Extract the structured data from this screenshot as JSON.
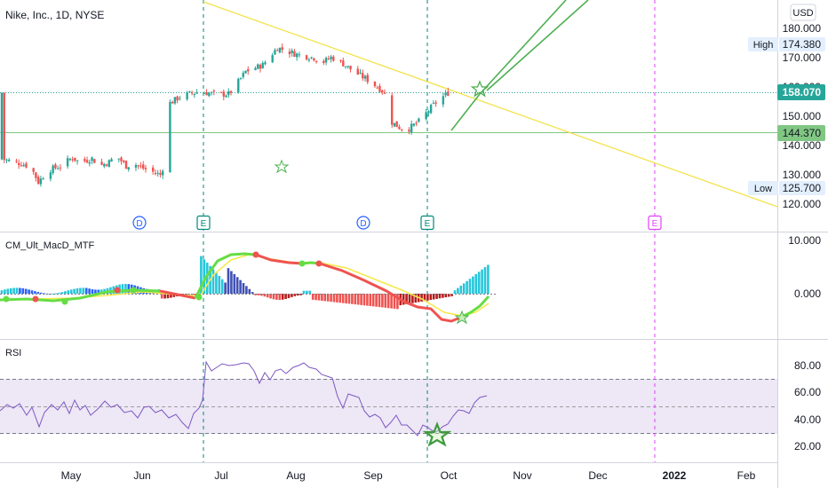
{
  "symbol_title": "Nike, Inc., 1D, NYSE",
  "currency": "USD",
  "price_axis": {
    "ticks": [
      "180.000",
      "170.000",
      "160.000",
      "150.000",
      "140.000",
      "130.000",
      "120.000"
    ],
    "values": [
      180,
      170,
      160,
      150,
      140,
      130,
      120
    ],
    "range": [
      113,
      187
    ]
  },
  "price_badges": {
    "high_label": "High",
    "high_value": "174.380",
    "last_value": "158.070",
    "level_value": "144.370",
    "low_label": "Low",
    "low_value": "125.700"
  },
  "event_markers": [
    {
      "label": "D",
      "kind": "dividend"
    },
    {
      "label": "E",
      "kind": "earnings"
    },
    {
      "label": "D",
      "kind": "dividend"
    },
    {
      "label": "E",
      "kind": "earnings"
    },
    {
      "label": "E",
      "kind": "earnings-upcoming"
    }
  ],
  "macd_panel": {
    "title": "CM_Ult_MacD_MTF",
    "ticks": [
      "10.000",
      "0.000"
    ],
    "values": [
      10,
      0
    ],
    "range": [
      -7.5,
      12
    ]
  },
  "rsi_panel": {
    "title": "RSI",
    "ticks": [
      "80.00",
      "60.00",
      "40.00",
      "20.00"
    ],
    "values": [
      80,
      60,
      40,
      20
    ],
    "range": [
      12,
      92
    ],
    "band": [
      30,
      70
    ],
    "midline": 50
  },
  "time_axis": {
    "labels": [
      "May",
      "Jun",
      "Jul",
      "Aug",
      "Sep",
      "Oct",
      "Nov",
      "Dec",
      "2022",
      "Feb"
    ]
  },
  "colors": {
    "up": "#26a69a",
    "down": "#ef5350",
    "trendline": "#f2e34c",
    "drawing": "#4caf50",
    "rsi_line": "#7e57c2",
    "rsi_band": "#ede7f6",
    "macd_up": "#4caf50",
    "macd_down": "#ef5350",
    "signal": "#f5e94a",
    "event_dividend": "#2962ff",
    "event_earnings": "#00897b",
    "event_upcoming": "#e040fb"
  },
  "chart_data": {
    "type": "candlestick",
    "title": "Nike, Inc., 1D, NYSE",
    "currency": "USD",
    "x_axis": [
      "May",
      "Jun",
      "Jul",
      "Aug",
      "Sep",
      "Oct",
      "Nov",
      "Dec",
      "2022",
      "Feb"
    ],
    "ylim": [
      113,
      187
    ],
    "close_path": [
      {
        "x": "Apr 19",
        "y": 135.2
      },
      {
        "x": "Apr 26",
        "y": 133.8
      },
      {
        "x": "Apr 30",
        "y": 132.6
      },
      {
        "x": "May 3",
        "y": 127.5
      },
      {
        "x": "May 7",
        "y": 131.5
      },
      {
        "x": "May 12",
        "y": 133.0
      },
      {
        "x": "May 17",
        "y": 135.9
      },
      {
        "x": "May 20",
        "y": 134.2
      },
      {
        "x": "May 25",
        "y": 135.6
      },
      {
        "x": "May 28",
        "y": 133.0
      },
      {
        "x": "Jun 1",
        "y": 134.4
      },
      {
        "x": "Jun 4",
        "y": 136.5
      },
      {
        "x": "Jun 8",
        "y": 133.0
      },
      {
        "x": "Jun 11",
        "y": 133.9
      },
      {
        "x": "Jun 15",
        "y": 132.2
      },
      {
        "x": "Jun 19",
        "y": 131.0
      },
      {
        "x": "Jun 22",
        "y": 130.0
      },
      {
        "x": "Jun 24",
        "y": 134.6
      },
      {
        "x": "Jun 25",
        "y": 154.0
      },
      {
        "x": "Jul 1",
        "y": 157.1
      },
      {
        "x": "Jul 8",
        "y": 158.4
      },
      {
        "x": "Jul 15",
        "y": 157.4
      },
      {
        "x": "Jul 20",
        "y": 157.6
      },
      {
        "x": "Jul 22",
        "y": 159.4
      },
      {
        "x": "Jul 27",
        "y": 165.3
      },
      {
        "x": "Aug 3",
        "y": 167.5
      },
      {
        "x": "Aug 9",
        "y": 173.4
      },
      {
        "x": "Aug 17",
        "y": 171.1
      },
      {
        "x": "Aug 24",
        "y": 170.0
      },
      {
        "x": "Aug 27",
        "y": 168.1
      },
      {
        "x": "Aug 31",
        "y": 170.1
      },
      {
        "x": "Sep 3",
        "y": 169.1
      },
      {
        "x": "Sep 10",
        "y": 164.9
      },
      {
        "x": "Sep 15",
        "y": 162.4
      },
      {
        "x": "Sep 21",
        "y": 158.8
      },
      {
        "x": "Sep 23",
        "y": 156.0
      },
      {
        "x": "Sep 24",
        "y": 148.5
      },
      {
        "x": "Sep 28",
        "y": 146.2
      },
      {
        "x": "Oct 1",
        "y": 145.2
      },
      {
        "x": "Oct 6",
        "y": 148.2
      },
      {
        "x": "Oct 11",
        "y": 152.9
      },
      {
        "x": "Oct 14",
        "y": 155.5
      },
      {
        "x": "Oct 18",
        "y": 158.0
      }
    ]
  }
}
